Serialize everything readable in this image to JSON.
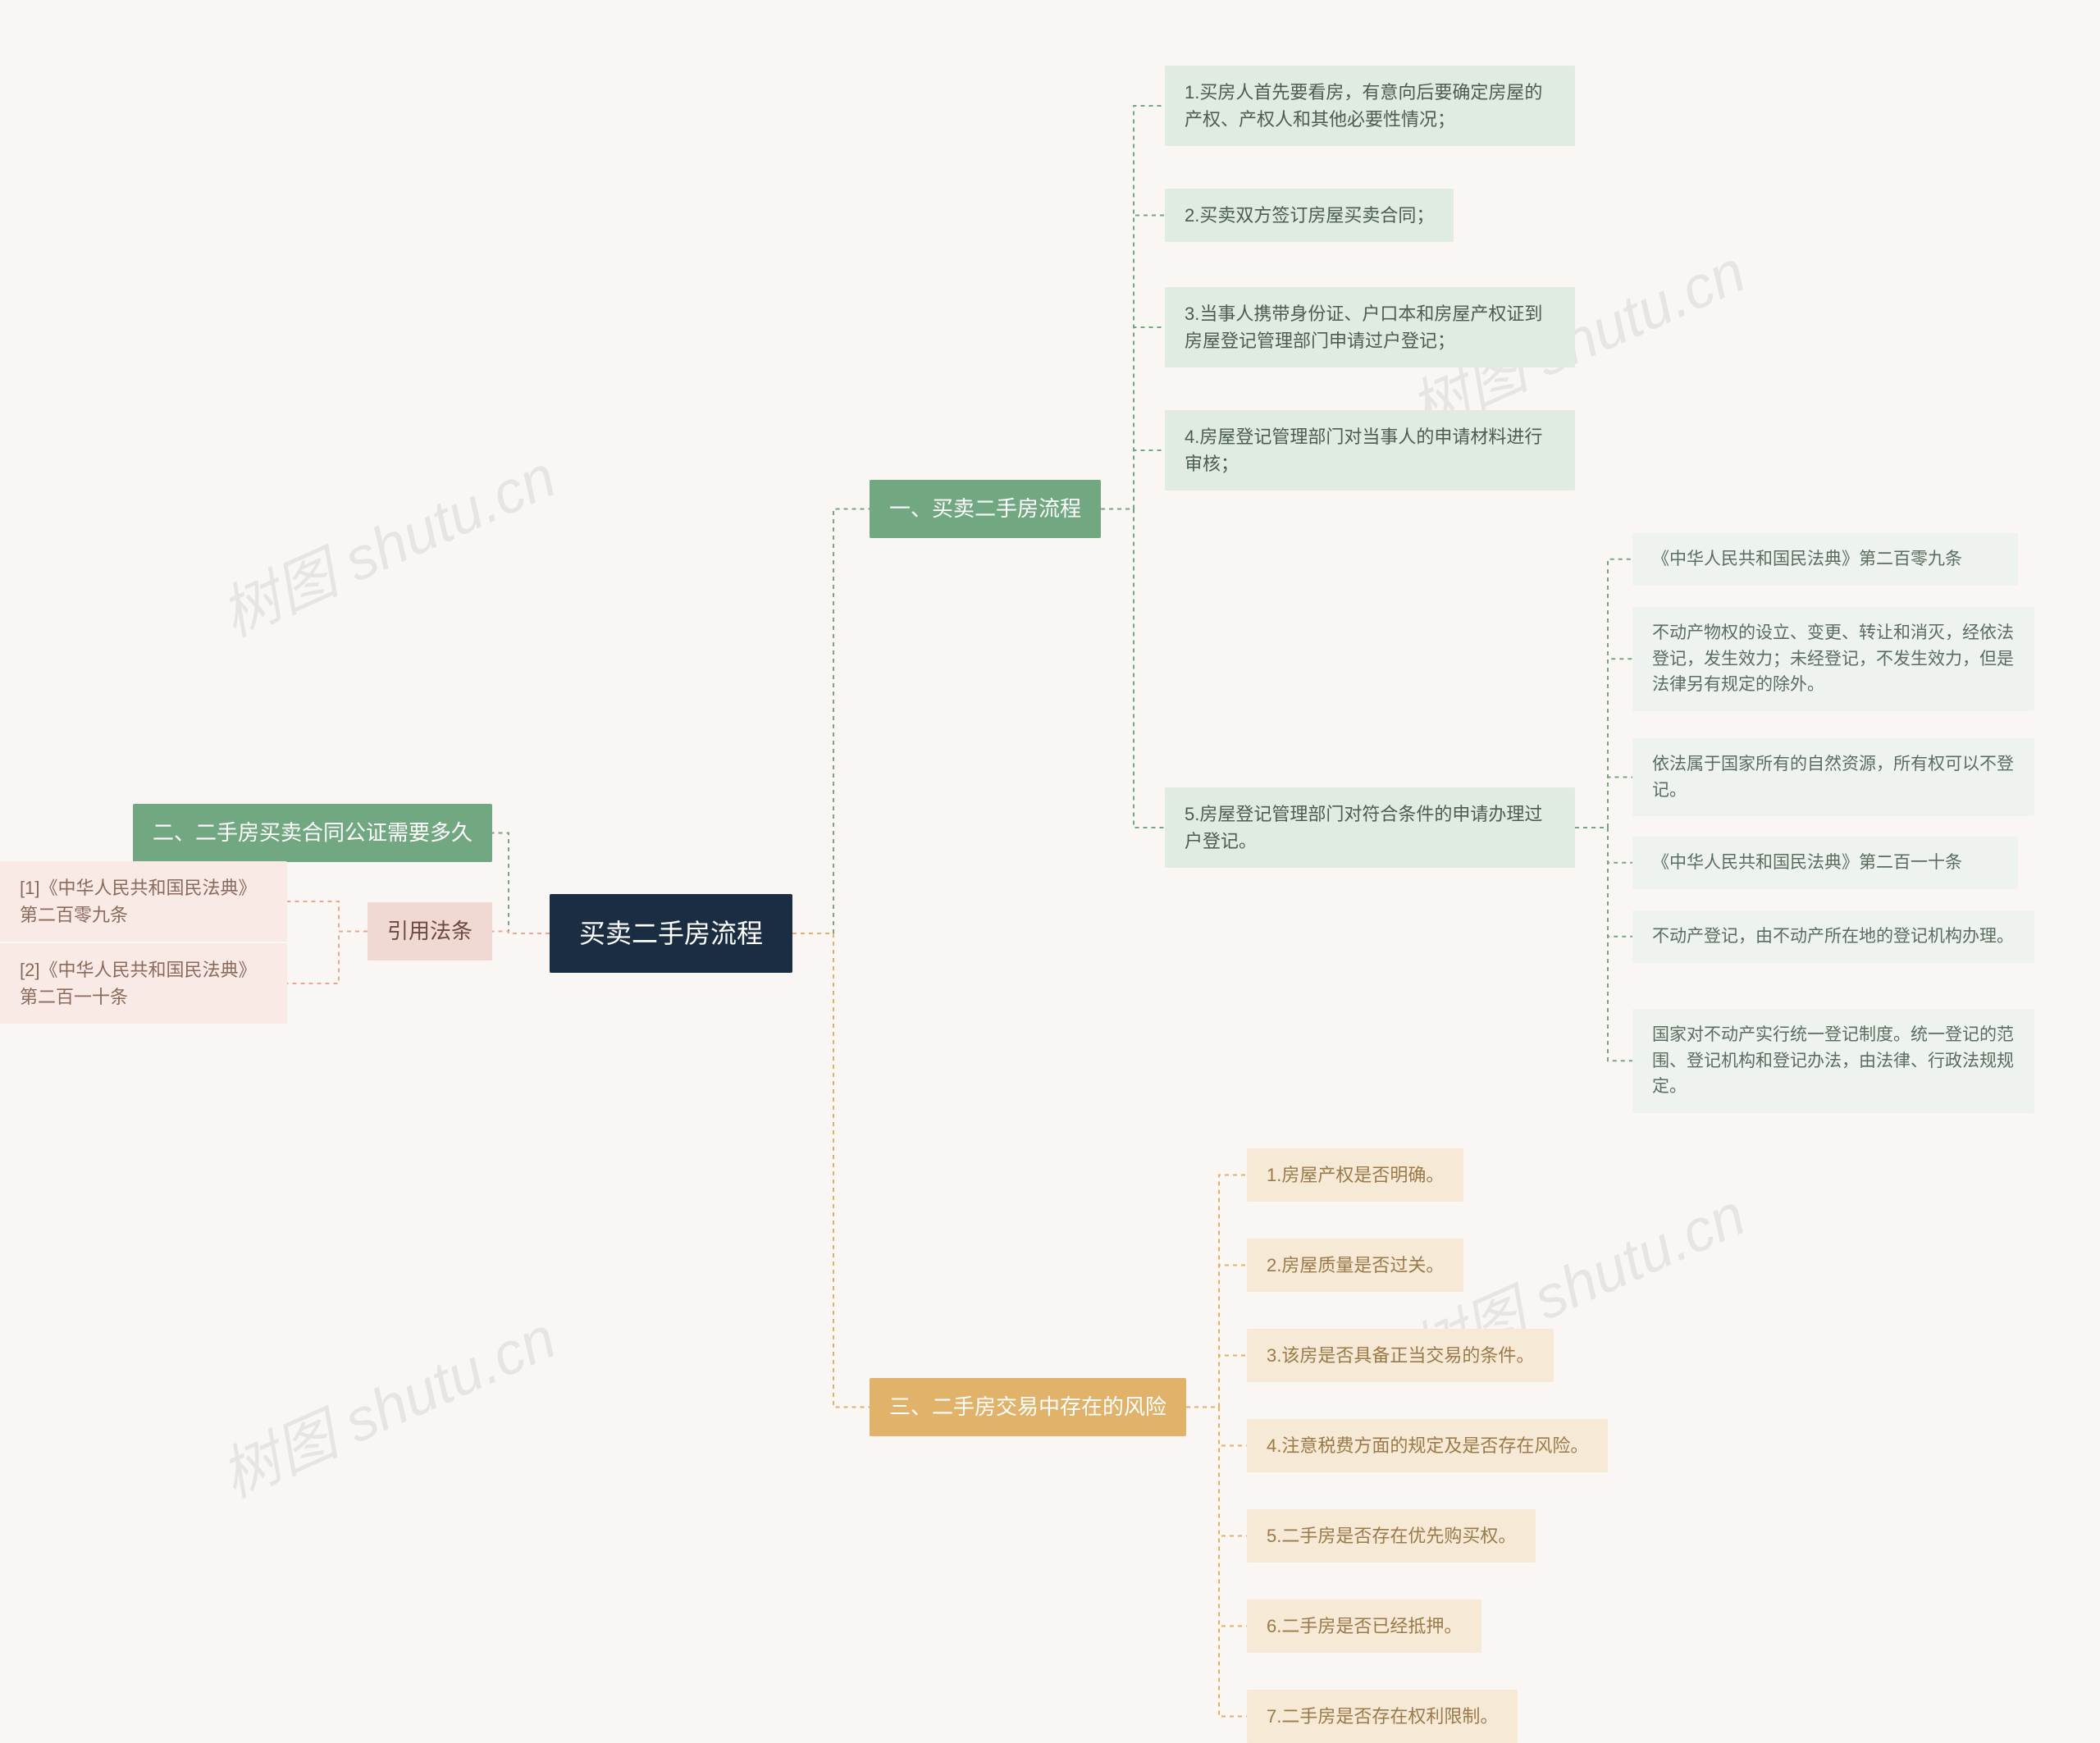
{
  "background_color": "#faf6f3",
  "watermark_text": "树图 shutu.cn",
  "watermark_color": "rgba(0,0,0,0.07)",
  "root": {
    "label": "买卖二手房流程",
    "bg": "#1a2d42",
    "fg": "#ffffff"
  },
  "right": {
    "s1": {
      "label": "一、买卖二手房流程",
      "bg": "#72a881",
      "fg": "#ffffff",
      "connector_color": "#72a881",
      "items": [
        "1.买房人首先要看房，有意向后要确定房屋的产权、产权人和其他必要性情况；",
        "2.买卖双方签订房屋买卖合同；",
        "3.当事人携带身份证、户口本和房屋产权证到房屋登记管理部门申请过户登记；",
        "4.房屋登记管理部门对当事人的申请材料进行审核；",
        "5.房屋登记管理部门对符合条件的申请办理过户登记。"
      ],
      "item5_sub": [
        "《中华人民共和国民法典》第二百零九条",
        "不动产物权的设立、变更、转让和消灭，经依法登记，发生效力；未经登记，不发生效力，但是法律另有规定的除外。",
        "依法属于国家所有的自然资源，所有权可以不登记。",
        "《中华人民共和国民法典》第二百一十条",
        "不动产登记，由不动产所在地的登记机构办理。",
        "国家对不动产实行统一登记制度。统一登记的范围、登记机构和登记办法，由法律、行政法规规定。"
      ]
    },
    "s3": {
      "label": "三、二手房交易中存在的风险",
      "bg": "#e0b26a",
      "fg": "#ffffff",
      "connector_color": "#e0b26a",
      "items": [
        "1.房屋产权是否明确。",
        "2.房屋质量是否过关。",
        "3.该房是否具备正当交易的条件。",
        "4.注意税费方面的规定及是否存在风险。",
        "5.二手房是否存在优先购买权。",
        "6.二手房是否已经抵押。",
        "7.二手房是否存在权利限制。"
      ]
    }
  },
  "left": {
    "s2": {
      "label": "二、二手房买卖合同公证需要多久",
      "bg": "#72a881",
      "fg": "#ffffff",
      "connector_color": "#72a881"
    },
    "ref": {
      "label": "引用法条",
      "bg": "#f0d9d2",
      "fg": "#6b4a3f",
      "connector_color": "#e9a88f",
      "items": [
        "[1]《中华人民共和国民法典》 第二百零九条",
        "[2]《中华人民共和国民法典》 第二百一十条"
      ]
    }
  }
}
